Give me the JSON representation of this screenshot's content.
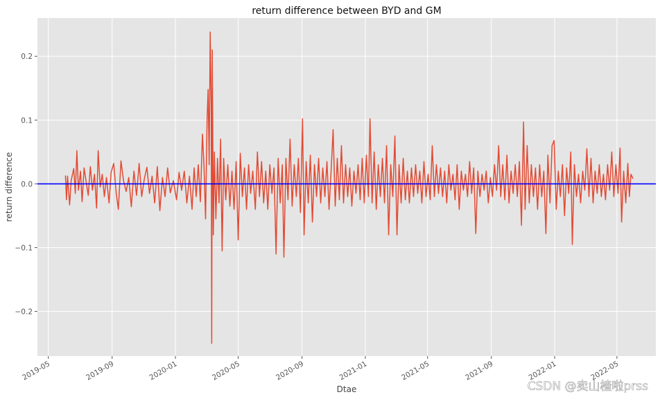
{
  "chart_data": {
    "type": "line",
    "title": "return difference between BYD and GM",
    "xlabel": "Dtae",
    "ylabel": "return difference",
    "xlim": [
      "2019-04-10",
      "2022-07-15"
    ],
    "ylim": [
      -0.27,
      0.26
    ],
    "x_ticks": [
      "2019-05",
      "2019-09",
      "2020-01",
      "2020-05",
      "2020-09",
      "2021-01",
      "2021-05",
      "2021-09",
      "2022-01",
      "2022-05"
    ],
    "y_ticks": [
      -0.2,
      -0.1,
      0.0,
      0.1,
      0.2
    ],
    "y_tick_labels": [
      "−0.2",
      "−0.1",
      "0.0",
      "0.1",
      "0.2"
    ],
    "reference_line": {
      "y": 0.0,
      "color": "#0000ff"
    },
    "grid": true,
    "background": "#e5e5e5",
    "series": [
      {
        "color": "#e24a33",
        "points": [
          [
            "2019-06-03",
            0.013
          ],
          [
            "2019-06-05",
            -0.025
          ],
          [
            "2019-06-07",
            0.012
          ],
          [
            "2019-06-11",
            -0.033
          ],
          [
            "2019-06-14",
            0.005
          ],
          [
            "2019-06-19",
            0.024
          ],
          [
            "2019-06-22",
            -0.015
          ],
          [
            "2019-06-25",
            0.052
          ],
          [
            "2019-06-28",
            -0.01
          ],
          [
            "2019-07-02",
            0.02
          ],
          [
            "2019-07-05",
            -0.028
          ],
          [
            "2019-07-09",
            0.025
          ],
          [
            "2019-07-13",
            0.003
          ],
          [
            "2019-07-17",
            -0.018
          ],
          [
            "2019-07-21",
            0.027
          ],
          [
            "2019-07-25",
            -0.01
          ],
          [
            "2019-07-29",
            0.015
          ],
          [
            "2019-08-02",
            -0.038
          ],
          [
            "2019-08-05",
            0.052
          ],
          [
            "2019-08-09",
            -0.005
          ],
          [
            "2019-08-13",
            0.015
          ],
          [
            "2019-08-17",
            -0.02
          ],
          [
            "2019-08-21",
            0.01
          ],
          [
            "2019-08-26",
            -0.03
          ],
          [
            "2019-08-30",
            0.018
          ],
          [
            "2019-09-04",
            0.032
          ],
          [
            "2019-09-09",
            -0.015
          ],
          [
            "2019-09-13",
            -0.04
          ],
          [
            "2019-09-18",
            0.036
          ],
          [
            "2019-09-23",
            0.005
          ],
          [
            "2019-09-28",
            -0.012
          ],
          [
            "2019-10-03",
            0.01
          ],
          [
            "2019-10-08",
            -0.036
          ],
          [
            "2019-10-13",
            0.02
          ],
          [
            "2019-10-18",
            -0.018
          ],
          [
            "2019-10-23",
            0.032
          ],
          [
            "2019-10-28",
            -0.02
          ],
          [
            "2019-11-02",
            0.008
          ],
          [
            "2019-11-07",
            0.026
          ],
          [
            "2019-11-12",
            -0.015
          ],
          [
            "2019-11-17",
            0.012
          ],
          [
            "2019-11-22",
            -0.03
          ],
          [
            "2019-11-27",
            0.027
          ],
          [
            "2019-12-02",
            -0.042
          ],
          [
            "2019-12-07",
            0.01
          ],
          [
            "2019-12-12",
            -0.02
          ],
          [
            "2019-12-17",
            0.025
          ],
          [
            "2019-12-22",
            -0.014
          ],
          [
            "2019-12-28",
            0.005
          ],
          [
            "2020-01-03",
            -0.025
          ],
          [
            "2020-01-08",
            0.018
          ],
          [
            "2020-01-13",
            -0.01
          ],
          [
            "2020-01-18",
            0.02
          ],
          [
            "2020-01-23",
            -0.03
          ],
          [
            "2020-01-28",
            0.012
          ],
          [
            "2020-02-02",
            -0.04
          ],
          [
            "2020-02-06",
            0.025
          ],
          [
            "2020-02-10",
            -0.02
          ],
          [
            "2020-02-14",
            0.03
          ],
          [
            "2020-02-18",
            -0.028
          ],
          [
            "2020-02-22",
            0.078
          ],
          [
            "2020-02-25",
            0.03
          ],
          [
            "2020-02-28",
            -0.055
          ],
          [
            "2020-03-02",
            0.1
          ],
          [
            "2020-03-04",
            0.148
          ],
          [
            "2020-03-06",
            0.03
          ],
          [
            "2020-03-08",
            0.238
          ],
          [
            "2020-03-10",
            0.12
          ],
          [
            "2020-03-11",
            -0.25
          ],
          [
            "2020-03-12",
            0.21
          ],
          [
            "2020-03-14",
            -0.08
          ],
          [
            "2020-03-16",
            0.05
          ],
          [
            "2020-03-19",
            -0.055
          ],
          [
            "2020-03-22",
            0.04
          ],
          [
            "2020-03-25",
            -0.03
          ],
          [
            "2020-03-28",
            0.07
          ],
          [
            "2020-03-31",
            -0.105
          ],
          [
            "2020-04-03",
            0.04
          ],
          [
            "2020-04-07",
            -0.025
          ],
          [
            "2020-04-11",
            0.03
          ],
          [
            "2020-04-15",
            -0.035
          ],
          [
            "2020-04-19",
            0.02
          ],
          [
            "2020-04-23",
            -0.04
          ],
          [
            "2020-04-27",
            0.035
          ],
          [
            "2020-05-01",
            -0.088
          ],
          [
            "2020-05-05",
            0.048
          ],
          [
            "2020-05-09",
            -0.02
          ],
          [
            "2020-05-13",
            0.025
          ],
          [
            "2020-05-17",
            -0.04
          ],
          [
            "2020-05-21",
            0.03
          ],
          [
            "2020-05-25",
            -0.015
          ],
          [
            "2020-05-29",
            0.02
          ],
          [
            "2020-06-03",
            -0.04
          ],
          [
            "2020-06-07",
            0.05
          ],
          [
            "2020-06-11",
            -0.02
          ],
          [
            "2020-06-15",
            0.035
          ],
          [
            "2020-06-19",
            -0.03
          ],
          [
            "2020-06-23",
            0.02
          ],
          [
            "2020-06-27",
            -0.04
          ],
          [
            "2020-07-01",
            0.03
          ],
          [
            "2020-07-05",
            -0.015
          ],
          [
            "2020-07-09",
            0.025
          ],
          [
            "2020-07-13",
            -0.11
          ],
          [
            "2020-07-17",
            0.04
          ],
          [
            "2020-07-21",
            -0.03
          ],
          [
            "2020-07-25",
            0.03
          ],
          [
            "2020-07-28",
            -0.115
          ],
          [
            "2020-08-01",
            0.04
          ],
          [
            "2020-08-05",
            -0.025
          ],
          [
            "2020-08-09",
            0.07
          ],
          [
            "2020-08-13",
            -0.035
          ],
          [
            "2020-08-17",
            0.03
          ],
          [
            "2020-08-21",
            -0.02
          ],
          [
            "2020-08-25",
            0.04
          ],
          [
            "2020-08-29",
            -0.045
          ],
          [
            "2020-09-02",
            0.102
          ],
          [
            "2020-09-05",
            -0.08
          ],
          [
            "2020-09-09",
            0.035
          ],
          [
            "2020-09-13",
            -0.03
          ],
          [
            "2020-09-17",
            0.045
          ],
          [
            "2020-09-21",
            -0.06
          ],
          [
            "2020-09-25",
            0.03
          ],
          [
            "2020-09-29",
            -0.02
          ],
          [
            "2020-10-03",
            0.04
          ],
          [
            "2020-10-07",
            -0.03
          ],
          [
            "2020-10-11",
            0.025
          ],
          [
            "2020-10-15",
            -0.02
          ],
          [
            "2020-10-19",
            0.035
          ],
          [
            "2020-10-23",
            -0.04
          ],
          [
            "2020-10-27",
            0.02
          ],
          [
            "2020-10-31",
            0.085
          ],
          [
            "2020-11-04",
            -0.035
          ],
          [
            "2020-11-08",
            0.04
          ],
          [
            "2020-11-12",
            -0.025
          ],
          [
            "2020-11-16",
            0.06
          ],
          [
            "2020-11-20",
            -0.03
          ],
          [
            "2020-11-24",
            0.03
          ],
          [
            "2020-11-28",
            -0.02
          ],
          [
            "2020-12-02",
            0.025
          ],
          [
            "2020-12-06",
            -0.035
          ],
          [
            "2020-12-10",
            0.02
          ],
          [
            "2020-12-14",
            -0.015
          ],
          [
            "2020-12-18",
            0.03
          ],
          [
            "2020-12-22",
            -0.025
          ],
          [
            "2020-12-26",
            0.04
          ],
          [
            "2020-12-30",
            -0.03
          ],
          [
            "2021-01-03",
            0.045
          ],
          [
            "2021-01-07",
            -0.02
          ],
          [
            "2021-01-10",
            0.102
          ],
          [
            "2021-01-14",
            -0.03
          ],
          [
            "2021-01-18",
            0.05
          ],
          [
            "2021-01-22",
            -0.04
          ],
          [
            "2021-01-26",
            0.03
          ],
          [
            "2021-01-30",
            -0.02
          ],
          [
            "2021-02-03",
            0.04
          ],
          [
            "2021-02-07",
            -0.03
          ],
          [
            "2021-02-11",
            0.06
          ],
          [
            "2021-02-15",
            -0.08
          ],
          [
            "2021-02-19",
            0.03
          ],
          [
            "2021-02-23",
            -0.02
          ],
          [
            "2021-02-27",
            0.075
          ],
          [
            "2021-03-03",
            -0.08
          ],
          [
            "2021-03-07",
            0.03
          ],
          [
            "2021-03-11",
            -0.03
          ],
          [
            "2021-03-15",
            0.04
          ],
          [
            "2021-03-19",
            -0.025
          ],
          [
            "2021-03-23",
            0.02
          ],
          [
            "2021-03-27",
            -0.03
          ],
          [
            "2021-03-31",
            0.025
          ],
          [
            "2021-04-04",
            -0.02
          ],
          [
            "2021-04-08",
            0.03
          ],
          [
            "2021-04-12",
            -0.015
          ],
          [
            "2021-04-16",
            0.02
          ],
          [
            "2021-04-20",
            -0.03
          ],
          [
            "2021-04-24",
            0.035
          ],
          [
            "2021-04-28",
            -0.02
          ],
          [
            "2021-05-02",
            0.015
          ],
          [
            "2021-05-06",
            -0.025
          ],
          [
            "2021-05-10",
            0.06
          ],
          [
            "2021-05-14",
            -0.02
          ],
          [
            "2021-05-18",
            0.03
          ],
          [
            "2021-05-22",
            -0.015
          ],
          [
            "2021-05-26",
            0.025
          ],
          [
            "2021-05-30",
            -0.02
          ],
          [
            "2021-06-03",
            0.02
          ],
          [
            "2021-06-07",
            -0.03
          ],
          [
            "2021-06-11",
            0.03
          ],
          [
            "2021-06-15",
            -0.01
          ],
          [
            "2021-06-19",
            0.015
          ],
          [
            "2021-06-23",
            -0.025
          ],
          [
            "2021-06-27",
            0.03
          ],
          [
            "2021-07-01",
            -0.04
          ],
          [
            "2021-07-05",
            0.02
          ],
          [
            "2021-07-09",
            -0.01
          ],
          [
            "2021-07-13",
            0.015
          ],
          [
            "2021-07-17",
            -0.02
          ],
          [
            "2021-07-21",
            0.035
          ],
          [
            "2021-07-25",
            -0.015
          ],
          [
            "2021-07-29",
            0.025
          ],
          [
            "2021-08-02",
            -0.078
          ],
          [
            "2021-08-06",
            0.02
          ],
          [
            "2021-08-10",
            -0.02
          ],
          [
            "2021-08-14",
            0.015
          ],
          [
            "2021-08-18",
            -0.01
          ],
          [
            "2021-08-22",
            0.02
          ],
          [
            "2021-08-26",
            -0.03
          ],
          [
            "2021-08-30",
            0.01
          ],
          [
            "2021-09-03",
            -0.02
          ],
          [
            "2021-09-07",
            0.03
          ],
          [
            "2021-09-11",
            -0.01
          ],
          [
            "2021-09-15",
            0.06
          ],
          [
            "2021-09-19",
            -0.02
          ],
          [
            "2021-09-23",
            0.03
          ],
          [
            "2021-09-27",
            -0.025
          ],
          [
            "2021-10-01",
            0.045
          ],
          [
            "2021-10-05",
            -0.03
          ],
          [
            "2021-10-09",
            0.02
          ],
          [
            "2021-10-13",
            -0.015
          ],
          [
            "2021-10-17",
            0.03
          ],
          [
            "2021-10-21",
            -0.02
          ],
          [
            "2021-10-25",
            0.035
          ],
          [
            "2021-10-29",
            -0.065
          ],
          [
            "2021-11-02",
            0.097
          ],
          [
            "2021-11-05",
            -0.04
          ],
          [
            "2021-11-09",
            0.06
          ],
          [
            "2021-11-13",
            -0.03
          ],
          [
            "2021-11-17",
            0.03
          ],
          [
            "2021-11-21",
            -0.02
          ],
          [
            "2021-11-25",
            0.025
          ],
          [
            "2021-11-29",
            -0.04
          ],
          [
            "2021-12-03",
            0.03
          ],
          [
            "2021-12-07",
            -0.02
          ],
          [
            "2021-12-11",
            0.02
          ],
          [
            "2021-12-15",
            -0.078
          ],
          [
            "2021-12-19",
            0.045
          ],
          [
            "2021-12-23",
            -0.03
          ],
          [
            "2021-12-27",
            0.06
          ],
          [
            "2021-12-31",
            0.068
          ],
          [
            "2022-01-04",
            -0.04
          ],
          [
            "2022-01-08",
            0.02
          ],
          [
            "2022-01-12",
            -0.02
          ],
          [
            "2022-01-16",
            0.03
          ],
          [
            "2022-01-20",
            -0.05
          ],
          [
            "2022-01-24",
            0.025
          ],
          [
            "2022-01-28",
            -0.015
          ],
          [
            "2022-02-01",
            0.05
          ],
          [
            "2022-02-04",
            -0.095
          ],
          [
            "2022-02-08",
            0.03
          ],
          [
            "2022-02-12",
            -0.02
          ],
          [
            "2022-02-16",
            0.015
          ],
          [
            "2022-02-20",
            -0.03
          ],
          [
            "2022-02-24",
            0.02
          ],
          [
            "2022-02-28",
            -0.01
          ],
          [
            "2022-03-04",
            0.055
          ],
          [
            "2022-03-08",
            -0.02
          ],
          [
            "2022-03-12",
            0.04
          ],
          [
            "2022-03-16",
            -0.03
          ],
          [
            "2022-03-20",
            0.02
          ],
          [
            "2022-03-24",
            -0.015
          ],
          [
            "2022-03-28",
            0.03
          ],
          [
            "2022-04-01",
            -0.02
          ],
          [
            "2022-04-05",
            0.015
          ],
          [
            "2022-04-09",
            -0.025
          ],
          [
            "2022-04-13",
            0.03
          ],
          [
            "2022-04-17",
            -0.01
          ],
          [
            "2022-04-21",
            0.05
          ],
          [
            "2022-04-25",
            -0.02
          ],
          [
            "2022-04-29",
            0.03
          ],
          [
            "2022-05-03",
            -0.015
          ],
          [
            "2022-05-07",
            0.056
          ],
          [
            "2022-05-10",
            -0.06
          ],
          [
            "2022-05-14",
            0.02
          ],
          [
            "2022-05-18",
            -0.03
          ],
          [
            "2022-05-22",
            0.032
          ],
          [
            "2022-05-25",
            -0.02
          ],
          [
            "2022-05-28",
            0.015
          ],
          [
            "2022-06-01",
            0.008
          ]
        ]
      }
    ]
  },
  "watermark": "CSDN @卖山楂啦prss"
}
